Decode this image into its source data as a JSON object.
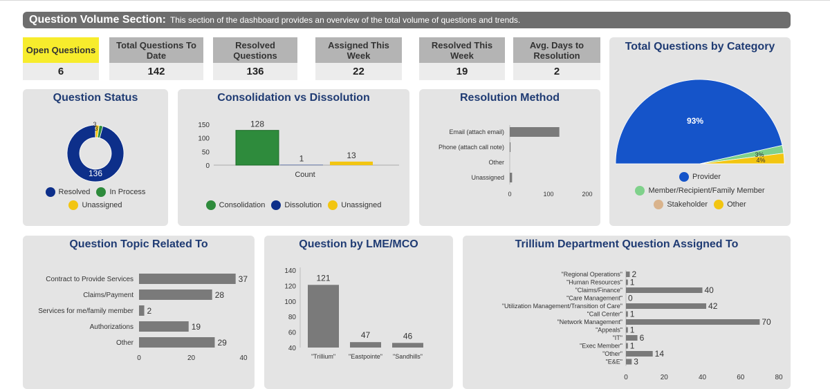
{
  "banner": {
    "title": "Question Volume Section:",
    "text": "This section of the dashboard provides an overview of the total volume of questions and trends."
  },
  "kpis": [
    {
      "label": "Open Questions",
      "value": "6",
      "highlight": true
    },
    {
      "label": "Total Questions To Date",
      "value": "142",
      "highlight": false
    },
    {
      "label": "Resolved Questions",
      "value": "136",
      "highlight": false
    },
    {
      "label": "Assigned This Week",
      "value": "22",
      "highlight": false
    },
    {
      "label": "Resolved This Week",
      "value": "19",
      "highlight": false
    },
    {
      "label": "Avg. Days to Resolution",
      "value": "2",
      "highlight": false
    }
  ],
  "colors": {
    "resolved": "#0d2f8a",
    "in_process": "#2e8b3c",
    "unassigned": "#f2c511",
    "consolidation": "#2e8b3c",
    "dissolution": "#0d2f8a",
    "provider": "#1554c9",
    "member": "#7fd18b",
    "stakeholder": "#d9b38c",
    "other": "#f2c511",
    "bar_gray": "#7a7a7a"
  },
  "chart_data": [
    {
      "id": "question-status",
      "type": "pie",
      "title": "Question Status",
      "categories": [
        "Resolved",
        "In Process",
        "Unassigned"
      ],
      "values": [
        136,
        3,
        3
      ],
      "data_labels": [
        "136",
        "3",
        "3"
      ]
    },
    {
      "id": "consolidation",
      "type": "bar",
      "title": "Consolidation vs Dissolution",
      "categories": [
        "Count"
      ],
      "series": [
        {
          "name": "Consolidation",
          "values": [
            128
          ]
        },
        {
          "name": "Dissolution",
          "values": [
            1
          ]
        },
        {
          "name": "Unassigned",
          "values": [
            13
          ]
        }
      ],
      "xlabel": "Count",
      "ylim": [
        0,
        150
      ],
      "yticks": [
        "150",
        "100",
        "50",
        "0"
      ]
    },
    {
      "id": "resolution-method",
      "type": "bar",
      "orientation": "horizontal",
      "title": "Resolution Method",
      "categories": [
        "Email (attach email)",
        "Phone (attach call note)",
        "Other",
        "Unassigned"
      ],
      "values": [
        128,
        2,
        0,
        6
      ],
      "xlim": [
        0,
        200
      ],
      "xticks": [
        "0",
        "100",
        "200"
      ]
    },
    {
      "id": "category",
      "type": "pie",
      "title": "Total Questions by Category",
      "categories": [
        "Provider",
        "Member/Recipient/Family Member",
        "Stakeholder",
        "Other"
      ],
      "values": [
        93,
        3,
        0,
        4
      ],
      "data_labels": [
        "93%",
        "3%",
        "",
        "4%"
      ]
    },
    {
      "id": "topic",
      "type": "bar",
      "orientation": "horizontal",
      "title": "Question Topic Related To",
      "categories": [
        "Contract to Provide Services",
        "Claims/Payment",
        "Services for me/family member",
        "Authorizations",
        "Other"
      ],
      "values": [
        37,
        28,
        2,
        19,
        29
      ],
      "xlim": [
        0,
        40
      ],
      "xticks": [
        "0",
        "20",
        "40"
      ]
    },
    {
      "id": "lme",
      "type": "bar",
      "title": "Question by LME/MCO",
      "categories": [
        "\"Trillium\"",
        "\"Eastpointe\"",
        "\"Sandhills\""
      ],
      "values": [
        121,
        47,
        46
      ],
      "ylim": [
        40,
        140
      ],
      "yticks": [
        "140",
        "120",
        "100",
        "80",
        "60",
        "40"
      ]
    },
    {
      "id": "department",
      "type": "bar",
      "orientation": "horizontal",
      "title": "Trillium Department Question Assigned To",
      "categories": [
        "\"Regional Operations\"",
        "\"Human Resources\"",
        "\"Claims/Finance\"",
        "\"Care Management\"",
        "\"Utilization Management/Transition of Care\"",
        "\"Call Center\"",
        "\"Network Management\"",
        "\"Appeals\"",
        "\"IT\"",
        "\"Exec Member\"",
        "\"Other\"",
        "\"E&E\""
      ],
      "values": [
        2,
        1,
        40,
        0,
        42,
        1,
        70,
        1,
        6,
        1,
        14,
        3
      ],
      "xlim": [
        0,
        80
      ],
      "xticks": [
        "0",
        "20",
        "40",
        "60",
        "80"
      ]
    }
  ]
}
